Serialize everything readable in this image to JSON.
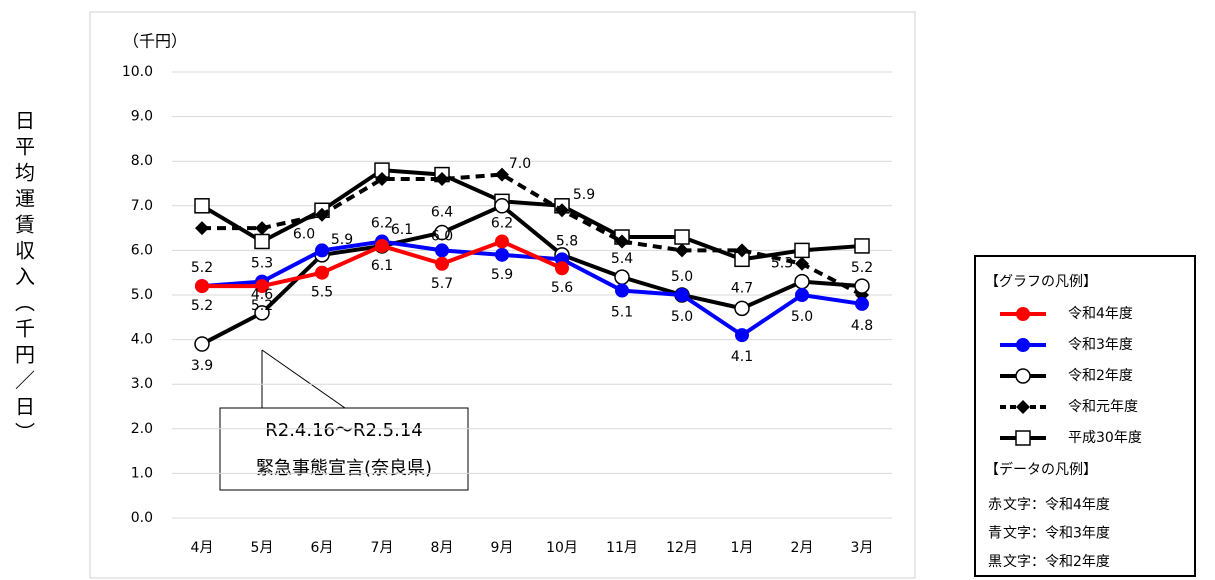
{
  "chart_data": {
    "type": "line",
    "y_axis_title": "日平均運賃収入（千円／日）",
    "y_unit": "（千円）",
    "categories": [
      "4月",
      "5月",
      "6月",
      "7月",
      "8月",
      "9月",
      "10月",
      "11月",
      "12月",
      "1月",
      "2月",
      "3月"
    ],
    "ylim": [
      0,
      10
    ],
    "yticks": [
      {
        "value": 0,
        "label": "0.0"
      },
      {
        "value": 1,
        "label": "1.0"
      },
      {
        "value": 2,
        "label": "2.0"
      },
      {
        "value": 3,
        "label": "3.0"
      },
      {
        "value": 4,
        "label": "4.0"
      },
      {
        "value": 5,
        "label": "5.0"
      },
      {
        "value": 6,
        "label": "6.0"
      },
      {
        "value": 7,
        "label": "7.0"
      },
      {
        "value": 8,
        "label": "8.0"
      },
      {
        "value": 9,
        "label": "9.0"
      },
      {
        "value": 10,
        "label": "10.0"
      }
    ],
    "grid": true,
    "series": [
      {
        "name": "令和4年度",
        "color": "#ff0000",
        "marker": "circle-filled",
        "dashed": false,
        "values": [
          5.2,
          5.2,
          5.5,
          6.1,
          5.7,
          6.2,
          5.6,
          null,
          null,
          null,
          null,
          null
        ],
        "value_labels": [
          "5.2",
          "5.2",
          "5.5",
          "6.1",
          "5.7",
          "6.2",
          "5.6",
          null,
          null,
          null,
          null,
          null
        ]
      },
      {
        "name": "令和3年度",
        "color": "#0000ff",
        "marker": "circle-filled",
        "dashed": false,
        "values": [
          5.2,
          5.3,
          6.0,
          6.2,
          6.0,
          5.9,
          5.8,
          5.1,
          5.0,
          4.1,
          5.0,
          4.8
        ],
        "value_labels": [
          "5.2",
          "5.3",
          "6.0",
          "6.2",
          "6.0",
          "5.9",
          "5.8",
          "5.1",
          "5.0",
          "4.1",
          "5.0",
          "4.8"
        ]
      },
      {
        "name": "令和2年度",
        "color": "#000000",
        "marker": "circle-open",
        "dashed": false,
        "values": [
          3.9,
          4.6,
          5.9,
          6.1,
          6.4,
          7.0,
          5.9,
          5.4,
          5.0,
          4.7,
          5.3,
          5.2
        ],
        "value_labels": [
          "3.9",
          "4.6",
          "5.9",
          "6.1",
          "6.4",
          "7.0",
          "5.9",
          "5.4",
          "5.0",
          "4.7",
          "5.3",
          "5.2"
        ]
      },
      {
        "name": "令和元年度",
        "color": "#000000",
        "marker": "diamond",
        "dashed": true,
        "values": [
          6.5,
          6.5,
          6.8,
          7.6,
          7.6,
          7.7,
          6.9,
          6.2,
          6.0,
          6.0,
          5.7,
          5.0
        ]
      },
      {
        "name": "平成30年度",
        "color": "#000000",
        "marker": "square-open",
        "dashed": false,
        "values": [
          7.0,
          6.2,
          6.9,
          7.8,
          7.7,
          7.1,
          7.0,
          6.3,
          6.3,
          5.8,
          6.0,
          6.1
        ]
      }
    ],
    "annotation": {
      "lines": [
        "R2.4.16～R2.5.14",
        "緊急事態宣言(奈良県)"
      ]
    },
    "legend_title": "【グラフの凡例】",
    "data_legend_title": "【データの凡例】",
    "data_legend": [
      {
        "color_word": "赤",
        "color": "#ff0000",
        "text": "文字：令和4年度"
      },
      {
        "color_word": "青",
        "color": "#0000ff",
        "text": "文字：令和3年度"
      },
      {
        "color_word": "黒",
        "color": "#000000",
        "text": "文字：令和2年度"
      }
    ]
  }
}
